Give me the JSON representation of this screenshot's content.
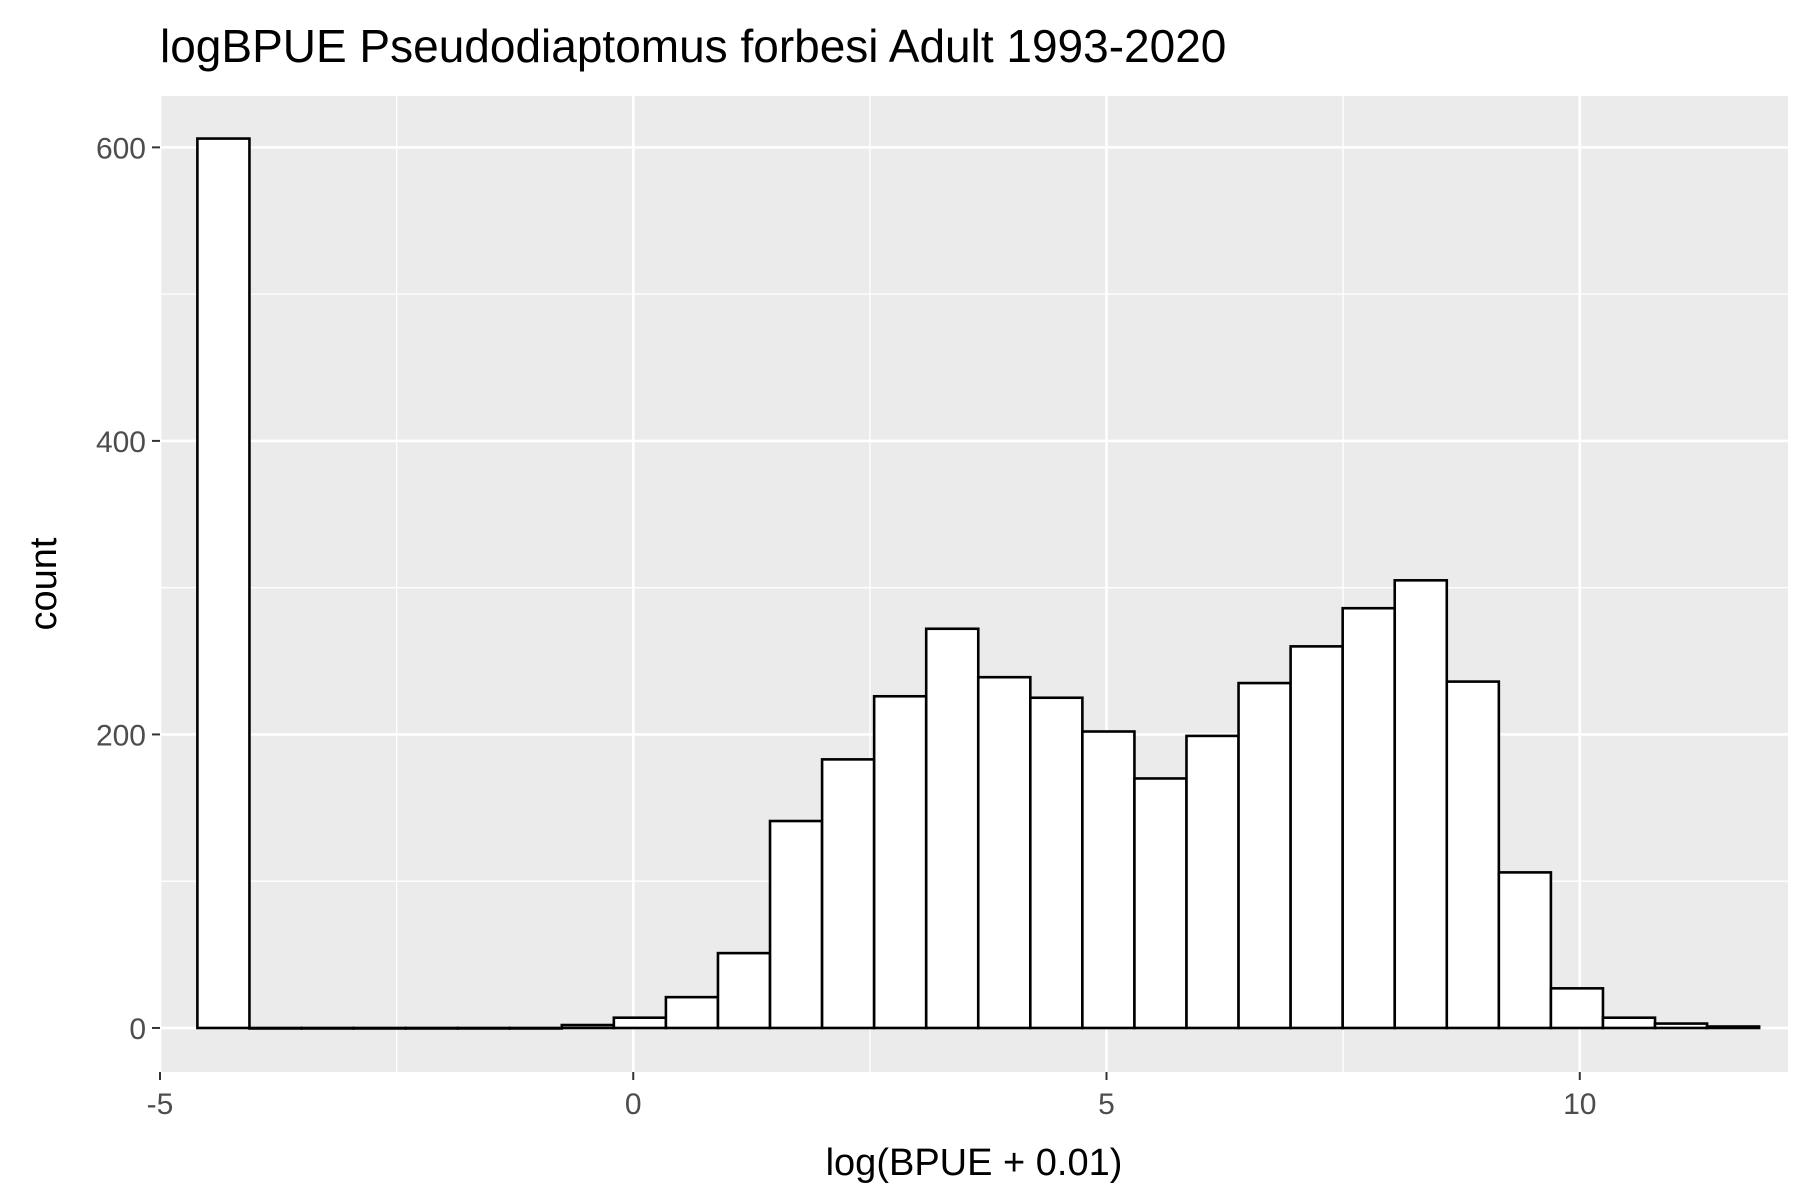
{
  "chart_data": {
    "type": "bar",
    "title": "logBPUE Pseudodiaptomus forbesi Adult  1993-2020",
    "xlabel": "log(BPUE + 0.01)",
    "ylabel": "count",
    "xlim": [
      -5.0,
      12.2
    ],
    "ylim": [
      -30,
      635
    ],
    "x_ticks": [
      -5,
      0,
      5,
      10
    ],
    "x_tick_labels": [
      "-5",
      "0",
      "5",
      "10"
    ],
    "y_ticks": [
      0,
      200,
      400,
      600
    ],
    "y_tick_labels": [
      "0",
      "200",
      "400",
      "600"
    ],
    "grid": true,
    "bin_width": 0.55,
    "bins": [
      {
        "x": -4.33,
        "count": 606
      },
      {
        "x": -3.78,
        "count": 0
      },
      {
        "x": -3.23,
        "count": 0
      },
      {
        "x": -2.68,
        "count": 0
      },
      {
        "x": -2.13,
        "count": 0
      },
      {
        "x": -1.58,
        "count": 0
      },
      {
        "x": -1.03,
        "count": 0
      },
      {
        "x": -0.48,
        "count": 2
      },
      {
        "x": 0.07,
        "count": 7
      },
      {
        "x": 0.62,
        "count": 21
      },
      {
        "x": 1.17,
        "count": 51
      },
      {
        "x": 1.72,
        "count": 141
      },
      {
        "x": 2.27,
        "count": 183
      },
      {
        "x": 2.82,
        "count": 226
      },
      {
        "x": 3.37,
        "count": 272
      },
      {
        "x": 3.92,
        "count": 239
      },
      {
        "x": 4.47,
        "count": 225
      },
      {
        "x": 5.02,
        "count": 202
      },
      {
        "x": 5.57,
        "count": 170
      },
      {
        "x": 6.12,
        "count": 199
      },
      {
        "x": 6.67,
        "count": 235
      },
      {
        "x": 7.22,
        "count": 260
      },
      {
        "x": 7.77,
        "count": 286
      },
      {
        "x": 8.32,
        "count": 305
      },
      {
        "x": 8.87,
        "count": 236
      },
      {
        "x": 9.42,
        "count": 106
      },
      {
        "x": 9.97,
        "count": 27
      },
      {
        "x": 10.52,
        "count": 7
      },
      {
        "x": 11.07,
        "count": 3
      },
      {
        "x": 11.62,
        "count": 1
      }
    ]
  }
}
